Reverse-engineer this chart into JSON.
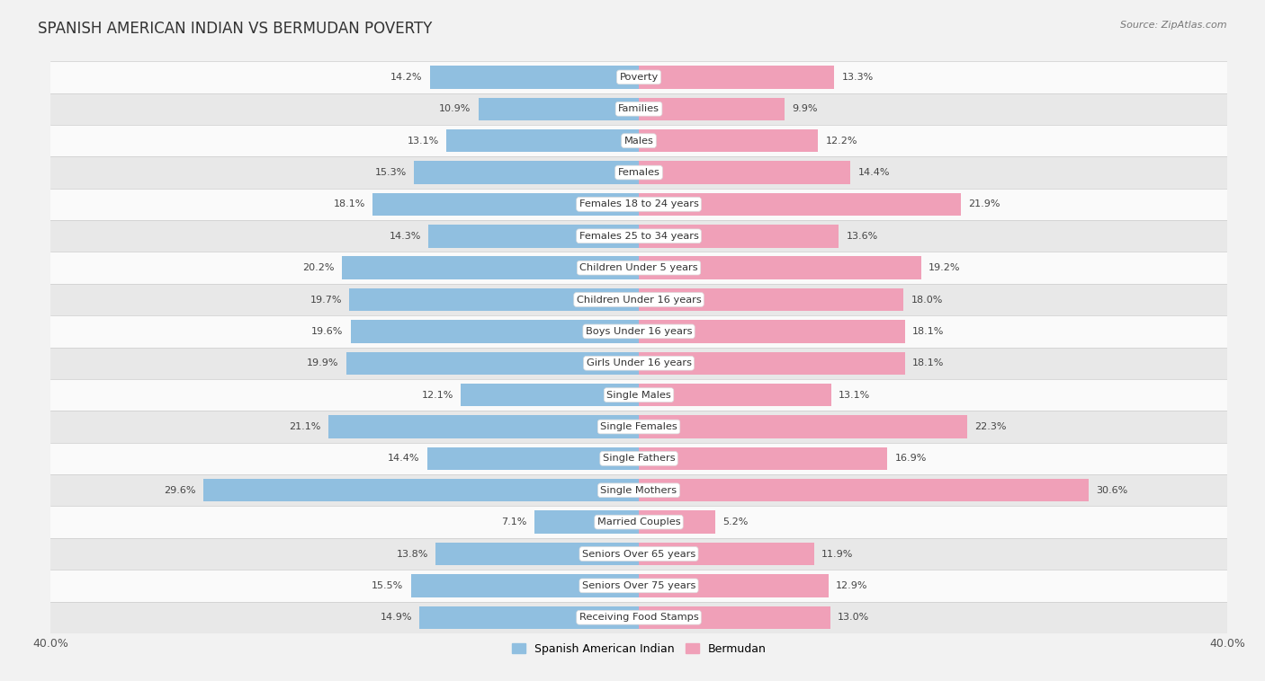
{
  "title": "SPANISH AMERICAN INDIAN VS BERMUDAN POVERTY",
  "source": "Source: ZipAtlas.com",
  "categories": [
    "Poverty",
    "Families",
    "Males",
    "Females",
    "Females 18 to 24 years",
    "Females 25 to 34 years",
    "Children Under 5 years",
    "Children Under 16 years",
    "Boys Under 16 years",
    "Girls Under 16 years",
    "Single Males",
    "Single Females",
    "Single Fathers",
    "Single Mothers",
    "Married Couples",
    "Seniors Over 65 years",
    "Seniors Over 75 years",
    "Receiving Food Stamps"
  ],
  "spanish_american_indian": [
    14.2,
    10.9,
    13.1,
    15.3,
    18.1,
    14.3,
    20.2,
    19.7,
    19.6,
    19.9,
    12.1,
    21.1,
    14.4,
    29.6,
    7.1,
    13.8,
    15.5,
    14.9
  ],
  "bermudan": [
    13.3,
    9.9,
    12.2,
    14.4,
    21.9,
    13.6,
    19.2,
    18.0,
    18.1,
    18.1,
    13.1,
    22.3,
    16.9,
    30.6,
    5.2,
    11.9,
    12.9,
    13.0
  ],
  "color_blue": "#90bfe0",
  "color_pink": "#f0a0b8",
  "axis_max": 40.0,
  "bar_height": 0.72,
  "bg_color": "#f2f2f2",
  "row_color_light": "#fafafa",
  "row_color_dark": "#e8e8e8",
  "legend_label_blue": "Spanish American Indian",
  "legend_label_pink": "Bermudan",
  "title_fontsize": 12,
  "label_fontsize": 8.2,
  "value_fontsize": 8.0
}
